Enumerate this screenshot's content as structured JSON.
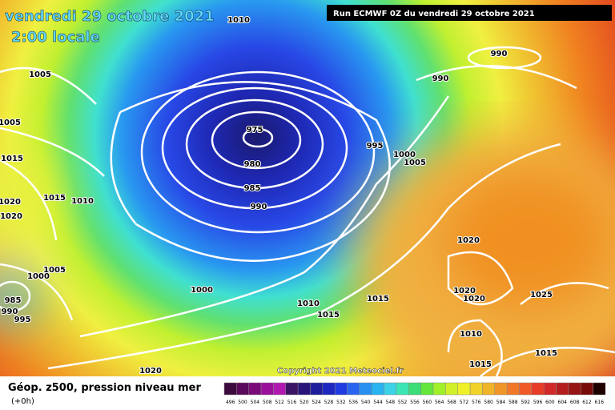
{
  "header": {
    "date": "vendredi 29 octobre 2021",
    "time": "2:00 locale",
    "run": "Run ECMWF 0Z du vendredi 29 octobre 2021"
  },
  "isobar_labels": [
    "1010",
    "1005",
    "990",
    "990",
    "1005",
    "975",
    "995",
    "1000",
    "1005",
    "980",
    "1015",
    "985",
    "990",
    "1015",
    "1010",
    "1020",
    "1020",
    "1020",
    "1005",
    "1000",
    "985",
    "990",
    "995",
    "1000",
    "1010",
    "1015",
    "1015",
    "1020",
    "1020",
    "1025",
    "1010",
    "1015",
    "1015",
    "1020"
  ],
  "copyright": "Copyright 2021 Meteociel.fr",
  "legend": {
    "title": "Géop. z500, pression niveau mer",
    "step": "(+0h)",
    "labels": [
      "496",
      "500",
      "504",
      "508",
      "512",
      "516",
      "520",
      "524",
      "528",
      "532",
      "536",
      "540",
      "544",
      "548",
      "552",
      "556",
      "560",
      "564",
      "568",
      "572",
      "576",
      "580",
      "584",
      "588",
      "592",
      "596",
      "600",
      "604",
      "608",
      "612",
      "616"
    ],
    "colors": [
      "#3c0a3c",
      "#5a0a5a",
      "#7a0a7a",
      "#9a109a",
      "#b018b0",
      "#3c1464",
      "#28147a",
      "#1e1e9a",
      "#1e28c0",
      "#1e3ce0",
      "#2864f0",
      "#2890f0",
      "#28b4f0",
      "#3cd2e6",
      "#3ce6b4",
      "#3cdc78",
      "#64e63c",
      "#a0f028",
      "#d2f028",
      "#f0f028",
      "#f0d228",
      "#f0b428",
      "#f09628",
      "#f07828",
      "#f05a28",
      "#e63c28",
      "#d22828",
      "#b41e1e",
      "#961414",
      "#780a0a",
      "#1e0000"
    ]
  }
}
